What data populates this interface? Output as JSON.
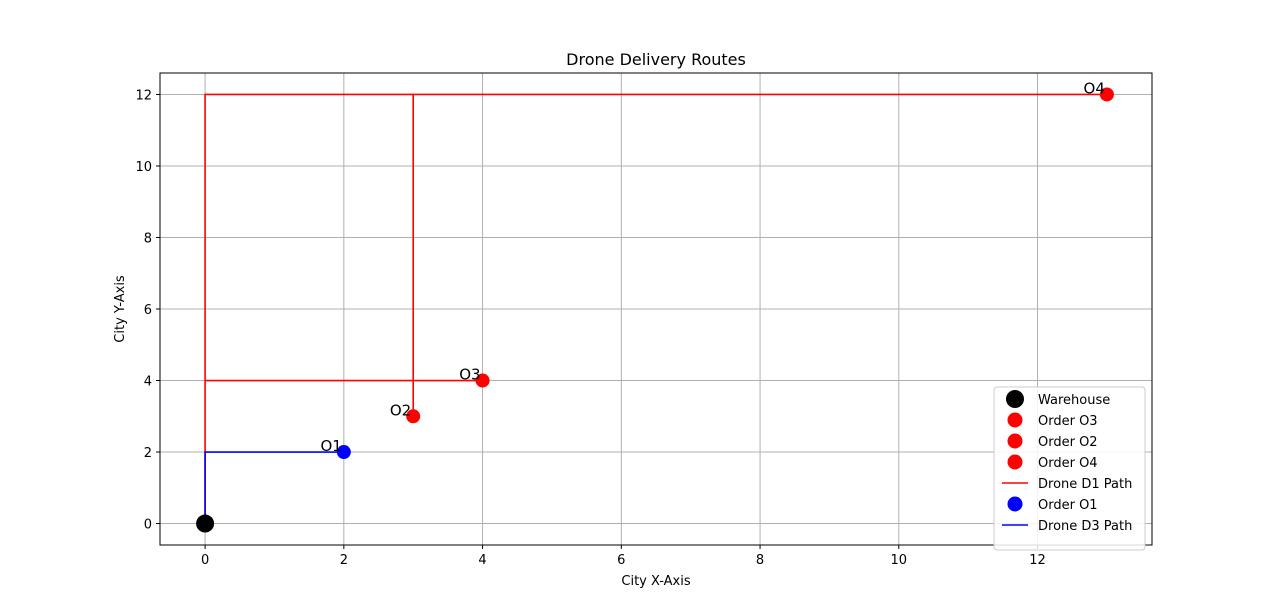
{
  "chart_data": {
    "type": "scatter",
    "title": "Drone Delivery Routes",
    "xlabel": "City X-Axis",
    "ylabel": "City Y-Axis",
    "xlim": [
      -0.65,
      13.65
    ],
    "ylim": [
      -0.6,
      12.6
    ],
    "xticks": [
      0,
      2,
      4,
      6,
      8,
      10,
      12
    ],
    "yticks": [
      0,
      2,
      4,
      6,
      8,
      10,
      12
    ],
    "grid": true,
    "legend_position": "lower-right",
    "points": [
      {
        "name": "Warehouse",
        "x": 0,
        "y": 0,
        "color": "#000000",
        "label": ""
      },
      {
        "name": "Order O3",
        "x": 4,
        "y": 4,
        "color": "#ff0000",
        "label": "O3"
      },
      {
        "name": "Order O2",
        "x": 3,
        "y": 3,
        "color": "#ff0000",
        "label": "O2"
      },
      {
        "name": "Order O4",
        "x": 13,
        "y": 12,
        "color": "#ff0000",
        "label": "O4"
      },
      {
        "name": "Order O1",
        "x": 2,
        "y": 2,
        "color": "#0000ff",
        "label": "O1"
      }
    ],
    "paths": [
      {
        "name": "Drone D1 Path",
        "color": "#ff0000",
        "x": [
          0,
          0,
          4,
          0,
          0,
          3,
          3,
          3,
          3,
          13,
          13
        ],
        "y": [
          0,
          4,
          4,
          4,
          12,
          12,
          3,
          3,
          12,
          12,
          12
        ]
      },
      {
        "name": "Drone D3 Path",
        "color": "#0000ff",
        "x": [
          0,
          0,
          2,
          2
        ],
        "y": [
          0,
          2,
          2,
          2
        ]
      }
    ],
    "legend": [
      {
        "label": "Warehouse",
        "kind": "marker",
        "color": "#000000"
      },
      {
        "label": "Order O3",
        "kind": "marker",
        "color": "#ff0000"
      },
      {
        "label": "Order O2",
        "kind": "marker",
        "color": "#ff0000"
      },
      {
        "label": "Order O4",
        "kind": "marker",
        "color": "#ff0000"
      },
      {
        "label": "Drone D1 Path",
        "kind": "line",
        "color": "#ff0000"
      },
      {
        "label": "Order O1",
        "kind": "marker",
        "color": "#0000ff"
      },
      {
        "label": "Drone D3 Path",
        "kind": "line",
        "color": "#0000ff"
      }
    ]
  }
}
